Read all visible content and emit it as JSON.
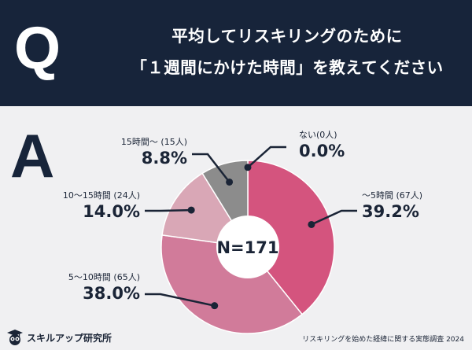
{
  "question": {
    "letter": "Q",
    "line1": "平均してリスキリングのために",
    "line2": "「１週間にかけた時間」を教えてください"
  },
  "answer": {
    "letter": "A"
  },
  "chart_data": {
    "type": "pie",
    "center_label": "N=171",
    "slices": [
      {
        "label": "〜5時間 (67人)",
        "value": 39.2,
        "value_label": "39.2%",
        "color": "#d4547e"
      },
      {
        "label": "5〜10時間 (65人)",
        "value": 38.0,
        "value_label": "38.0%",
        "color": "#d17b9a"
      },
      {
        "label": "10〜15時間 (24人)",
        "value": 14.0,
        "value_label": "14.0%",
        "color": "#d9a7b6"
      },
      {
        "label": "15時間〜 (15人)",
        "value": 8.8,
        "value_label": "8.8%",
        "color": "#8c8c8c"
      },
      {
        "label": "ない(0人)",
        "value": 0.0,
        "value_label": "0.0%",
        "color": "#bbbbbb"
      }
    ]
  },
  "footer": {
    "brand": "スキルアップ研究所",
    "source": "リスキリングを始めた経緯に関する実態調査 2024"
  }
}
